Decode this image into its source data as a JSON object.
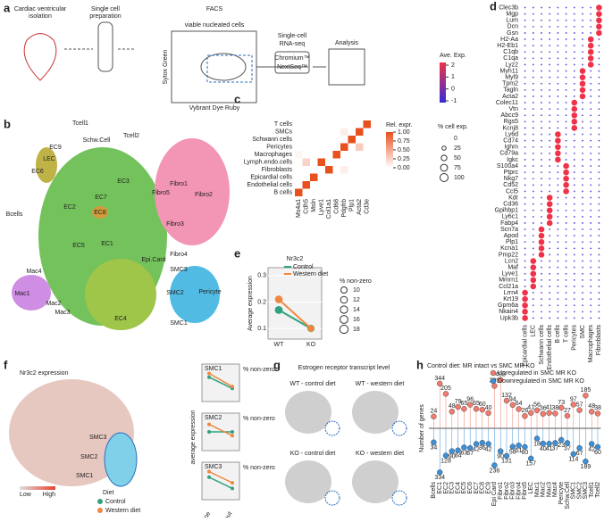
{
  "a": {
    "letter": "a",
    "isolation": [
      "Cardiac ventricular",
      "isolation"
    ],
    "prep": [
      "Single cell",
      "preparation"
    ],
    "facs": "FACS",
    "facs_title": "viable nucleated cells",
    "facs_y": "Sytox Green",
    "facs_x": "Vybrant Dye Ruby",
    "seq": [
      "Single-cell",
      "RNA-seq"
    ],
    "seq_boxes": [
      "Chromium™",
      "NextSeq™"
    ],
    "analysis": "Analysis"
  },
  "b": {
    "letter": "b",
    "clusters": [
      "Tcell1",
      "Tcell2",
      "Schw.Cell",
      "EC9",
      "LEC",
      "EC6",
      "Bcells",
      "Fibro1",
      "Fibro5",
      "Fibro2",
      "EC3",
      "EC7",
      "EC2",
      "EC8",
      "Fibro3",
      "Epi.Card",
      "EC5",
      "EC1",
      "Fibro4",
      "SMC3",
      "Mac4",
      "SMC2",
      "Pericyte",
      "Mac1",
      "Mac2",
      "Mac3",
      "EC4",
      "SMC1"
    ]
  },
  "c": {
    "letter": "c",
    "rows": [
      "T cells",
      "SMCs",
      "Schwann cells",
      "Pericytes",
      "Macrophages",
      "Lymph.endo.cells",
      "Fibroblasts",
      "Epicardial cells",
      "Endothelial cells",
      "B cells"
    ],
    "columns": [
      "Ms4a1",
      "Cdh5",
      "Msln",
      "Lyve1",
      "Col1a1",
      "Cd68",
      "Pdgfrb",
      "Plp1",
      "Acta2",
      "Cd3e"
    ],
    "z": [
      [
        0,
        0,
        0,
        0,
        0,
        0,
        0,
        0,
        0,
        1
      ],
      [
        0,
        0,
        0,
        0,
        0,
        0,
        0.1,
        0,
        1,
        0
      ],
      [
        0,
        0,
        0,
        0,
        0,
        0,
        0,
        1,
        0,
        0
      ],
      [
        0,
        0,
        0,
        0,
        0,
        0,
        1,
        0,
        0.3,
        0
      ],
      [
        0.05,
        0,
        0,
        0,
        0,
        1,
        0,
        0,
        0,
        0
      ],
      [
        0,
        0.25,
        0,
        1,
        0,
        0,
        0,
        0,
        0,
        0
      ],
      [
        0,
        0,
        0,
        0,
        1,
        0,
        0.1,
        0,
        0,
        0
      ],
      [
        0,
        0,
        1,
        0,
        0,
        0,
        0,
        0,
        0,
        0
      ],
      [
        0,
        1,
        0,
        0,
        0,
        0,
        0,
        0,
        0,
        0
      ],
      [
        1,
        0,
        0,
        0,
        0,
        0,
        0,
        0,
        0,
        0
      ]
    ],
    "color": "#e8501e",
    "colorbar_label": "Rel. expr.",
    "colorbar_ticks": [
      {
        "value": 1,
        "label": "1.00"
      },
      {
        "value": 0.75,
        "label": "0.75"
      },
      {
        "value": 0.5,
        "label": "0.50"
      },
      {
        "value": 0.25,
        "label": "0.25"
      },
      {
        "value": 0,
        "label": "0.00"
      }
    ]
  },
  "d": {
    "letter": "d",
    "genes": [
      "Clec3b",
      "Mgp",
      "Lum",
      "Dcn",
      "Gsn",
      "H2-Aa",
      "H2-Eb1",
      "C1qb",
      "C1qa",
      "Lyz2",
      "Myh11",
      "Myl9",
      "Tpm2",
      "Tagln",
      "Acta2",
      "Colec11",
      "Vtn",
      "Abcc9",
      "Rgs5",
      "Kcnj8",
      "Ly6d",
      "Cd74",
      "Ighm",
      "Cd79a",
      "Igkc",
      "S100a4",
      "Ptprc",
      "Nkg7",
      "Cd52",
      "Ccl5",
      "Kdr",
      "Cd36",
      "Gpihbp1",
      "Ly6c1",
      "Fabp4",
      "Scn7a",
      "Apod",
      "Plp1",
      "Kcna1",
      "Pmp22",
      "Lcn2",
      "Maf",
      "Lyve1",
      "Mmrn1",
      "Ccl21a",
      "Lrrn4",
      "Krt19",
      "Gpm6a",
      "Nkain4",
      "Upk3b"
    ],
    "columns": [
      "Epicardial cells",
      "LEC",
      "Schwann cells",
      "Endothelial cells",
      "B cells",
      "T cells",
      "Pericytes",
      "SMC",
      "Macrophages",
      "Fibroblasts"
    ],
    "marker_column": [
      9,
      9,
      9,
      9,
      9,
      8,
      8,
      8,
      8,
      8,
      7,
      7,
      7,
      7,
      7,
      6,
      6,
      6,
      6,
      6,
      4,
      4,
      4,
      4,
      4,
      5,
      5,
      5,
      5,
      5,
      3,
      3,
      3,
      3,
      3,
      2,
      2,
      2,
      2,
      2,
      1,
      1,
      1,
      1,
      1,
      0,
      0,
      0,
      0,
      0
    ],
    "ave_exp_label": "Ave. Exp.",
    "ave_exp_ticks": [
      2,
      1,
      0,
      -1
    ],
    "pct_label": "% cell exp.",
    "pct_ticks": [
      0,
      25,
      50,
      75,
      100
    ]
  },
  "e": {
    "letter": "e",
    "title": "Nr3c2",
    "ylabel": "Average expression",
    "categories": [
      "WT",
      "KO"
    ],
    "series": [
      {
        "name": "Control",
        "color": "#2fa27f",
        "values": [
          0.17,
          0.1
        ],
        "pct": [
          16,
          14
        ]
      },
      {
        "name": "Western diet",
        "color": "#f0873f",
        "values": [
          0.21,
          0.1
        ],
        "pct": [
          15,
          12
        ]
      }
    ],
    "ylim": [
      0.06,
      0.33
    ],
    "yticks": [
      0.1,
      0.2,
      0.3
    ],
    "size_label": "% non-zero",
    "size_ticks": [
      10,
      12,
      14,
      16,
      18
    ]
  },
  "f": {
    "letter": "f",
    "title": "Nr3c2 expression",
    "labels": [
      "SMC3",
      "SMC2",
      "SMC1"
    ],
    "low": "Low",
    "high": "High",
    "legend_title": "Diet",
    "series": [
      {
        "name": "Control",
        "color": "#2fa27f"
      },
      {
        "name": "Western diet",
        "color": "#f0873f"
      }
    ],
    "plot_ylabel": "average expression",
    "plot_x": [
      "Wild-type",
      "Knock-out"
    ],
    "size_label": "% non-zero",
    "small_plots": [
      {
        "title": "SMC1",
        "ylim": [
          0,
          0.2
        ],
        "values": [
          [
            0.13,
            0.07
          ],
          [
            0.15,
            0.08
          ]
        ]
      },
      {
        "title": "SMC2",
        "ylim": [
          0,
          0.2
        ],
        "values": [
          [
            0.1,
            0.1
          ],
          [
            0.14,
            0.08
          ]
        ]
      },
      {
        "title": "SMC3",
        "ylim": [
          0,
          0.2
        ],
        "values": [
          [
            0.12,
            0.06
          ],
          [
            0.15,
            0.09
          ]
        ]
      }
    ]
  },
  "g": {
    "letter": "g",
    "title": "Estrogen receptor transcript level",
    "panels": [
      "WT - control diet",
      "WT - western diet",
      "KO - control diet",
      "KO - western diet"
    ]
  },
  "h": {
    "letter": "h",
    "title": "Control diet: MR intact vs SMC MR KO",
    "ylabel": "Number of genes",
    "categories": [
      "Bcells",
      "EC1",
      "EC2",
      "EC3",
      "EC4",
      "EC5",
      "EC6",
      "EC7",
      "EC8",
      "EC9",
      "Epi Card",
      "Fibro1",
      "Fibro2",
      "Fibro3",
      "Fibro4",
      "Fibro5",
      "LEC",
      "Mac1",
      "Mac2",
      "Mac3",
      "Mac4",
      "Pericyte",
      "Schw.Cell",
      "SMC1",
      "SMC2",
      "SMC3",
      "Tcell1",
      "Tcell2"
    ],
    "series": [
      {
        "name": "Upregulated in SMC MR KO",
        "color": "#f07b6e",
        "values": [
          24,
          344,
          205,
          48,
          79,
          65,
          96,
          65,
          60,
          40,
          309,
          403,
          132,
          94,
          64,
          26,
          41,
          56,
          36,
          41,
          38,
          73,
          27,
          97,
          57,
          185,
          48,
          38
        ]
      },
      {
        "name": "Downregulated in SMC MR KO",
        "color": "#3d8fd6",
        "values": [
          34,
          334,
          128,
          90,
          84,
          63,
          67,
          42,
          36,
          42,
          236,
          90,
          131,
          58,
          51,
          60,
          157,
          18,
          40,
          41,
          37,
          23,
          37,
          114,
          67,
          189,
          42,
          60
        ]
      }
    ]
  }
}
